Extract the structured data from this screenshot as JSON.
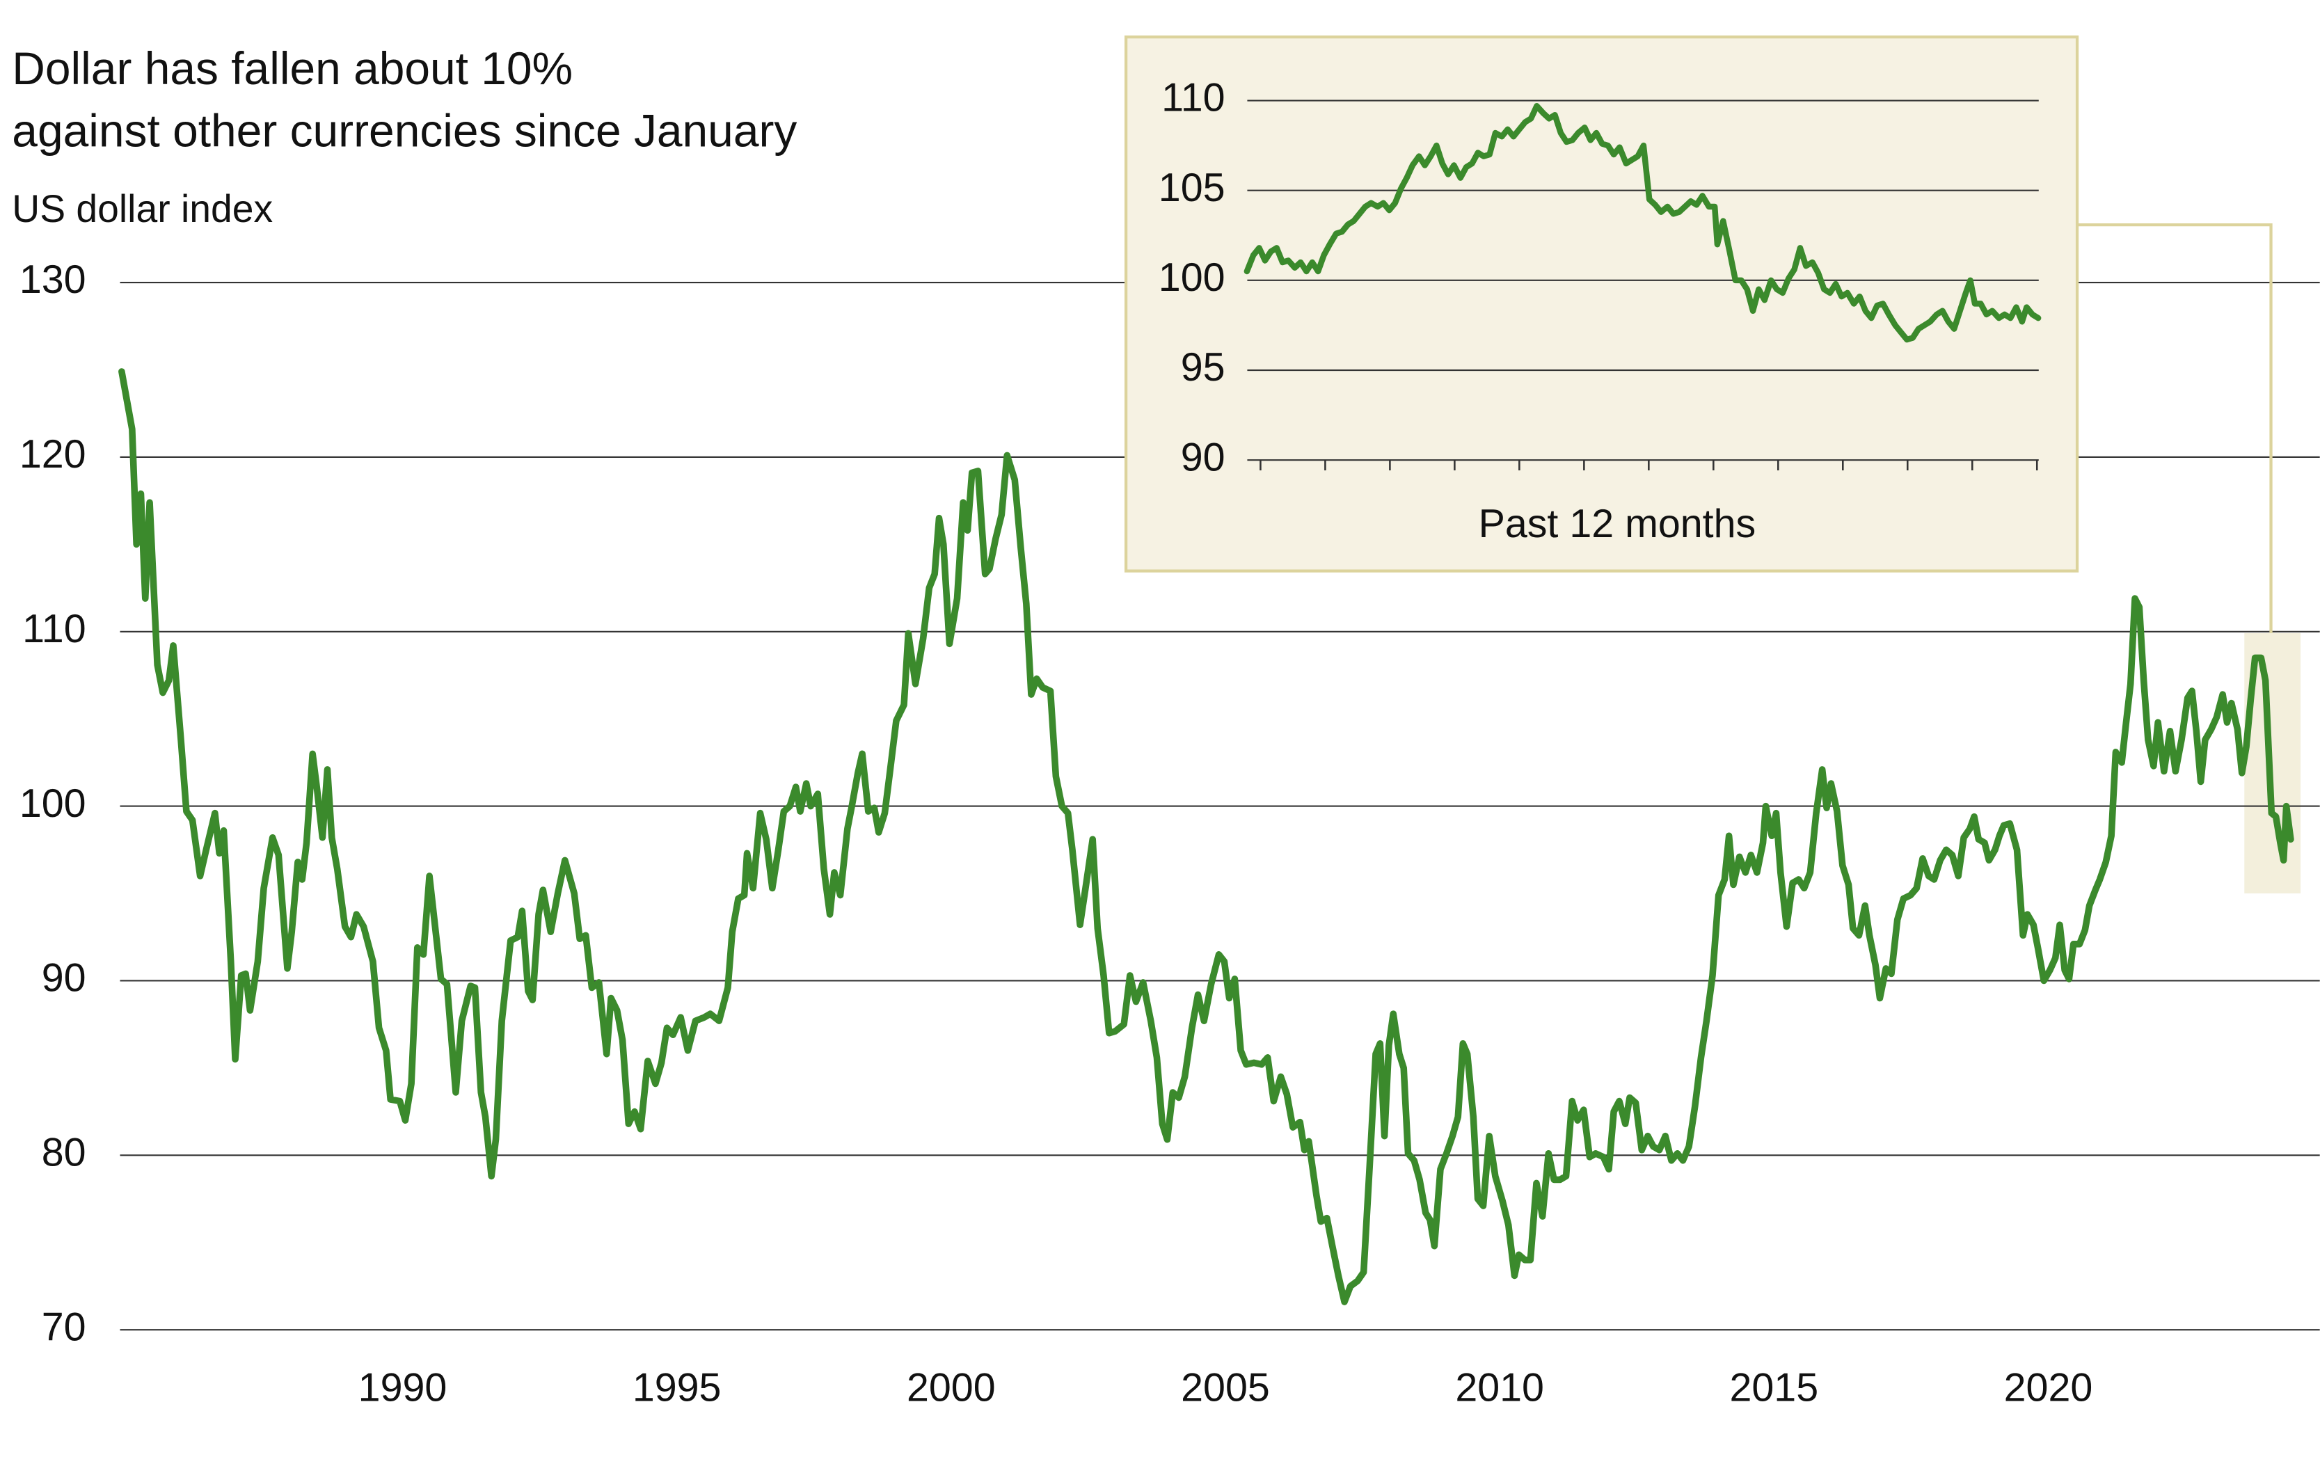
{
  "chart_data": [
    {
      "type": "line",
      "title": [
        "Dollar has fallen about 10%",
        "against other currencies since January"
      ],
      "y_label": "US dollar index",
      "color": "#3b8a2c",
      "grid": true,
      "xlim": [
        1984.85,
        2024.95
      ],
      "xticks": [
        1990,
        1995,
        2000,
        2005,
        2010,
        2015,
        2020
      ],
      "ylim": [
        70,
        130
      ],
      "yticks": [
        70,
        80,
        90,
        100,
        110,
        120,
        130
      ],
      "x": [
        1984.88,
        1985.07,
        1985.15,
        1985.23,
        1985.31,
        1985.39,
        1985.53,
        1985.63,
        1985.74,
        1985.82,
        1985.96,
        1986.06,
        1986.17,
        1986.31,
        1986.42,
        1986.58,
        1986.66,
        1986.74,
        1986.87,
        1986.95,
        1987.06,
        1987.14,
        1987.22,
        1987.36,
        1987.47,
        1987.63,
        1987.74,
        1987.9,
        1987.98,
        1988.09,
        1988.17,
        1988.25,
        1988.36,
        1988.44,
        1988.54,
        1988.63,
        1988.71,
        1988.81,
        1988.95,
        1989.06,
        1989.16,
        1989.29,
        1989.46,
        1989.57,
        1989.7,
        1989.78,
        1989.95,
        1990.05,
        1990.16,
        1990.27,
        1990.38,
        1990.49,
        1990.59,
        1990.7,
        1990.81,
        1990.97,
        1991.08,
        1991.24,
        1991.32,
        1991.43,
        1991.51,
        1991.62,
        1991.7,
        1991.81,
        1991.97,
        1992.1,
        1992.18,
        1992.29,
        1992.37,
        1992.48,
        1992.56,
        1992.7,
        1992.83,
        1992.96,
        1993.13,
        1993.23,
        1993.34,
        1993.45,
        1993.58,
        1993.72,
        1993.8,
        1993.91,
        1994.01,
        1994.12,
        1994.23,
        1994.34,
        1994.47,
        1994.61,
        1994.72,
        1994.82,
        1994.93,
        1995.07,
        1995.2,
        1995.34,
        1995.5,
        1995.61,
        1995.77,
        1995.93,
        1996.01,
        1996.12,
        1996.23,
        1996.28,
        1996.39,
        1996.52,
        1996.63,
        1996.74,
        1996.85,
        1996.95,
        1997.06,
        1997.17,
        1997.25,
        1997.36,
        1997.44,
        1997.57,
        1997.68,
        1997.79,
        1997.87,
        1997.98,
        1998.11,
        1998.19,
        1998.3,
        1998.38,
        1998.49,
        1998.6,
        1998.68,
        1998.79,
        1998.89,
        1999.0,
        1999.14,
        1999.22,
        1999.35,
        1999.49,
        1999.6,
        1999.7,
        1999.78,
        1999.86,
        1999.97,
        2000.11,
        2000.22,
        2000.3,
        2000.38,
        2000.49,
        2000.62,
        2000.7,
        2000.81,
        2000.92,
        2001.02,
        2001.16,
        2001.27,
        2001.37,
        2001.46,
        2001.56,
        2001.67,
        2001.81,
        2001.91,
        2002.02,
        2002.13,
        2002.21,
        2002.35,
        2002.45,
        2002.58,
        2002.67,
        2002.78,
        2002.88,
        2002.99,
        2003.15,
        2003.26,
        2003.37,
        2003.5,
        2003.64,
        2003.75,
        2003.85,
        2003.94,
        2004.04,
        2004.15,
        2004.26,
        2004.39,
        2004.5,
        2004.61,
        2004.74,
        2004.88,
        2004.98,
        2005.07,
        2005.17,
        2005.28,
        2005.38,
        2005.52,
        2005.66,
        2005.77,
        2005.88,
        2006.01,
        2006.12,
        2006.23,
        2006.36,
        2006.44,
        2006.52,
        2006.66,
        2006.74,
        2006.85,
        2006.95,
        2007.06,
        2007.17,
        2007.28,
        2007.41,
        2007.52,
        2007.63,
        2007.74,
        2007.82,
        2007.9,
        2007.98,
        2008.06,
        2008.17,
        2008.25,
        2008.33,
        2008.44,
        2008.54,
        2008.65,
        2008.73,
        2008.81,
        2008.92,
        2009.03,
        2009.14,
        2009.24,
        2009.33,
        2009.41,
        2009.52,
        2009.6,
        2009.7,
        2009.81,
        2009.92,
        2010.05,
        2010.16,
        2010.27,
        2010.35,
        2010.46,
        2010.56,
        2010.67,
        2010.78,
        2010.89,
        2010.99,
        2011.1,
        2011.21,
        2011.32,
        2011.42,
        2011.53,
        2011.64,
        2011.75,
        2011.89,
        2011.99,
        2012.08,
        2012.18,
        2012.29,
        2012.37,
        2012.48,
        2012.59,
        2012.7,
        2012.8,
        2012.91,
        2013.02,
        2013.13,
        2013.24,
        2013.34,
        2013.45,
        2013.56,
        2013.67,
        2013.77,
        2013.88,
        2013.99,
        2014.1,
        2014.18,
        2014.26,
        2014.37,
        2014.48,
        2014.58,
        2014.69,
        2014.8,
        2014.85,
        2014.96,
        2015.04,
        2015.12,
        2015.23,
        2015.34,
        2015.45,
        2015.55,
        2015.66,
        2015.77,
        2015.88,
        2015.96,
        2016.04,
        2016.15,
        2016.25,
        2016.36,
        2016.44,
        2016.55,
        2016.66,
        2016.74,
        2016.85,
        2016.93,
        2017.04,
        2017.14,
        2017.25,
        2017.36,
        2017.49,
        2017.6,
        2017.71,
        2017.82,
        2017.92,
        2018.03,
        2018.14,
        2018.25,
        2018.36,
        2018.46,
        2018.57,
        2018.65,
        2018.73,
        2018.84,
        2018.92,
        2019.03,
        2019.11,
        2019.19,
        2019.3,
        2019.43,
        2019.54,
        2019.62,
        2019.73,
        2019.81,
        2019.92,
        2020.03,
        2020.13,
        2020.21,
        2020.3,
        2020.38,
        2020.46,
        2020.57,
        2020.67,
        2020.75,
        2020.86,
        2020.94,
        2021.05,
        2021.15,
        2021.23,
        2021.34,
        2021.42,
        2021.5,
        2021.58,
        2021.66,
        2021.74,
        2021.82,
        2021.92,
        2022.0,
        2022.11,
        2022.22,
        2022.32,
        2022.43,
        2022.54,
        2022.62,
        2022.7,
        2022.78,
        2022.86,
        2022.97,
        2023.07,
        2023.18,
        2023.26,
        2023.34,
        2023.45,
        2023.53,
        2023.61,
        2023.69,
        2023.77,
        2023.88,
        2023.96,
        2024.07,
        2024.15,
        2024.23,
        2024.29,
        2024.34,
        2024.42
      ],
      "values": [
        124.9,
        121.6,
        115.0,
        117.9,
        111.9,
        117.4,
        108.1,
        106.5,
        107.2,
        109.2,
        103.8,
        99.7,
        99.2,
        96.0,
        97.5,
        99.6,
        97.3,
        98.6,
        91.1,
        85.5,
        90.3,
        90.4,
        88.3,
        91.1,
        95.3,
        98.2,
        97.2,
        90.7,
        92.8,
        96.8,
        95.8,
        97.9,
        103.0,
        101.0,
        98.2,
        102.1,
        98.2,
        96.4,
        93.1,
        92.5,
        93.8,
        93.1,
        91.1,
        87.3,
        86.0,
        83.2,
        83.1,
        82.0,
        84.1,
        91.9,
        91.5,
        96.0,
        93.2,
        90.1,
        89.8,
        83.6,
        87.7,
        89.7,
        89.6,
        83.6,
        82.2,
        78.8,
        80.9,
        87.7,
        92.3,
        92.5,
        94.0,
        89.4,
        88.9,
        93.8,
        95.2,
        92.8,
        95.0,
        96.9,
        95.0,
        92.4,
        92.6,
        89.6,
        89.9,
        85.8,
        89.0,
        88.3,
        86.6,
        81.8,
        82.5,
        81.5,
        85.4,
        84.1,
        85.3,
        87.3,
        86.9,
        87.9,
        86.0,
        87.7,
        87.9,
        88.1,
        87.7,
        89.6,
        92.8,
        94.7,
        94.9,
        97.3,
        95.3,
        99.6,
        98.1,
        95.3,
        97.5,
        99.7,
        100.0,
        101.1,
        99.7,
        101.3,
        100.0,
        100.7,
        96.4,
        93.8,
        96.2,
        94.9,
        98.7,
        100.0,
        101.9,
        103.0,
        99.7,
        99.9,
        98.5,
        99.6,
        102.1,
        104.9,
        105.8,
        109.9,
        107.0,
        109.6,
        112.5,
        113.3,
        116.5,
        115.0,
        109.3,
        111.9,
        117.4,
        115.8,
        119.1,
        119.2,
        113.3,
        113.6,
        115.3,
        116.7,
        120.1,
        118.7,
        114.8,
        111.6,
        106.4,
        107.3,
        106.8,
        106.6,
        101.7,
        100.0,
        99.6,
        97.5,
        93.2,
        95.3,
        98.1,
        93.0,
        90.3,
        87.0,
        87.1,
        87.5,
        90.3,
        88.8,
        89.9,
        87.7,
        85.6,
        81.8,
        80.9,
        83.6,
        83.3,
        84.5,
        87.3,
        89.2,
        87.7,
        89.8,
        91.5,
        91.1,
        89.0,
        90.1,
        86.0,
        85.2,
        85.3,
        85.2,
        85.6,
        83.1,
        84.5,
        83.5,
        81.6,
        81.9,
        80.3,
        80.8,
        77.7,
        76.2,
        76.4,
        74.8,
        73.1,
        71.6,
        72.5,
        72.8,
        73.3,
        79.4,
        85.8,
        86.4,
        81.1,
        86.3,
        88.1,
        85.8,
        85.0,
        80.1,
        79.7,
        78.6,
        76.7,
        76.3,
        74.8,
        79.2,
        80.1,
        81.1,
        82.2,
        86.4,
        85.8,
        82.2,
        77.5,
        77.1,
        81.1,
        78.8,
        77.4,
        76.0,
        73.1,
        74.3,
        74.0,
        74.0,
        78.4,
        76.5,
        80.1,
        78.6,
        78.6,
        78.8,
        83.1,
        82.0,
        82.6,
        79.9,
        80.1,
        79.9,
        79.2,
        82.5,
        83.1,
        81.8,
        83.3,
        83.0,
        80.3,
        81.1,
        80.5,
        80.3,
        81.1,
        79.7,
        80.1,
        79.7,
        80.5,
        82.8,
        85.6,
        87.7,
        90.3,
        94.9,
        95.8,
        98.3,
        95.5,
        97.1,
        96.2,
        97.2,
        96.2,
        97.9,
        100.0,
        98.3,
        99.6,
        96.2,
        93.1,
        95.6,
        95.8,
        95.3,
        96.2,
        99.6,
        102.1,
        99.9,
        101.3,
        99.7,
        96.6,
        95.5,
        93.0,
        92.6,
        94.3,
        92.6,
        90.9,
        89.0,
        90.7,
        90.4,
        93.5,
        94.7,
        94.9,
        95.3,
        97.0,
        96.0,
        95.8,
        96.9,
        97.5,
        97.2,
        96.0,
        98.2,
        98.7,
        99.4,
        98.1,
        97.9,
        96.9,
        97.5,
        98.3,
        98.9,
        99.0,
        97.5,
        92.6,
        93.8,
        93.2,
        91.9,
        90.0,
        90.6,
        91.3,
        93.2,
        90.6,
        90.1,
        92.1,
        92.1,
        92.9,
        94.3,
        95.2,
        95.8,
        96.8,
        98.3,
        103.1,
        102.5,
        104.8,
        107.0,
        111.9,
        111.4,
        107.2,
        103.8,
        102.3,
        104.8,
        102.0,
        104.3,
        102.0,
        103.8,
        106.2,
        106.6,
        104.3,
        101.4,
        103.8,
        104.4,
        105.1,
        106.4,
        104.8,
        105.9,
        104.4,
        101.9,
        103.4,
        106.1,
        108.5,
        108.5,
        107.2,
        99.6,
        99.4,
        97.9,
        96.9,
        100.0,
        98.1
      ]
    },
    {
      "type": "line",
      "x_label": "Past 12 months",
      "color": "#3b8a2c",
      "grid": true,
      "xlim": [
        -0.25,
        12.05
      ],
      "xticks": [
        0,
        1,
        2,
        3,
        4,
        5,
        6,
        7,
        8,
        9,
        10,
        11,
        12
      ],
      "ylim": [
        90,
        110
      ],
      "yticks": [
        90,
        95,
        100,
        105,
        110
      ],
      "x": [
        -0.21,
        -0.11,
        -0.02,
        0.07,
        0.16,
        0.25,
        0.34,
        0.43,
        0.53,
        0.62,
        0.71,
        0.8,
        0.89,
        0.98,
        1.07,
        1.17,
        1.26,
        1.35,
        1.44,
        1.53,
        1.62,
        1.71,
        1.81,
        1.9,
        1.99,
        2.08,
        2.17,
        2.26,
        2.35,
        2.45,
        2.54,
        2.63,
        2.72,
        2.81,
        2.9,
        2.99,
        3.09,
        3.18,
        3.27,
        3.36,
        3.45,
        3.54,
        3.63,
        3.73,
        3.82,
        3.91,
        4.0,
        4.09,
        4.18,
        4.27,
        4.37,
        4.46,
        4.55,
        4.64,
        4.73,
        4.82,
        4.91,
        5.01,
        5.1,
        5.19,
        5.28,
        5.37,
        5.46,
        5.55,
        5.65,
        5.74,
        5.83,
        5.92,
        6.01,
        6.1,
        6.19,
        6.29,
        6.38,
        6.47,
        6.56,
        6.65,
        6.74,
        6.83,
        6.93,
        7.02,
        7.06,
        7.15,
        7.25,
        7.34,
        7.43,
        7.52,
        7.61,
        7.7,
        7.79,
        7.89,
        7.98,
        8.07,
        8.16,
        8.25,
        8.34,
        8.43,
        8.53,
        8.62,
        8.71,
        8.8,
        8.89,
        8.98,
        9.07,
        9.17,
        9.26,
        9.35,
        9.44,
        9.53,
        9.62,
        9.71,
        9.81,
        9.9,
        9.99,
        10.08,
        10.17,
        10.26,
        10.35,
        10.45,
        10.54,
        10.63,
        10.72,
        10.81,
        10.9,
        10.97,
        11.04,
        11.13,
        11.22,
        11.31,
        11.41,
        11.5,
        11.59,
        11.68,
        11.77,
        11.84,
        11.93,
        12.02
      ],
      "values": [
        100.5,
        101.4,
        101.8,
        101.1,
        101.6,
        101.8,
        101.0,
        101.1,
        100.7,
        101.0,
        100.5,
        101.0,
        100.5,
        101.4,
        102.0,
        102.6,
        102.7,
        103.1,
        103.3,
        103.7,
        104.1,
        104.3,
        104.1,
        104.3,
        103.9,
        104.3,
        105.1,
        105.7,
        106.4,
        106.9,
        106.4,
        106.9,
        107.5,
        106.5,
        105.9,
        106.4,
        105.7,
        106.3,
        106.5,
        107.1,
        106.9,
        107.0,
        108.2,
        108.0,
        108.4,
        108.0,
        108.4,
        108.8,
        109.0,
        109.7,
        109.3,
        109.0,
        109.2,
        108.2,
        107.7,
        107.8,
        108.2,
        108.5,
        107.8,
        108.2,
        107.6,
        107.5,
        107.0,
        107.4,
        106.5,
        106.7,
        106.9,
        107.5,
        104.5,
        104.2,
        103.8,
        104.1,
        103.7,
        103.8,
        104.1,
        104.4,
        104.2,
        104.7,
        104.1,
        104.1,
        102.0,
        103.3,
        101.6,
        100.0,
        100.0,
        99.5,
        98.3,
        99.5,
        98.9,
        100.0,
        99.5,
        99.3,
        100.1,
        100.6,
        101.8,
        100.8,
        101.0,
        100.4,
        99.5,
        99.3,
        99.8,
        99.1,
        99.3,
        98.7,
        99.1,
        98.3,
        97.9,
        98.6,
        98.7,
        98.1,
        97.5,
        97.1,
        96.7,
        96.8,
        97.3,
        97.5,
        97.7,
        98.1,
        98.3,
        97.7,
        97.3,
        98.3,
        99.3,
        100.0,
        98.7,
        98.7,
        98.1,
        98.3,
        97.9,
        98.1,
        97.9,
        98.5,
        97.7,
        98.5,
        98.1,
        97.9
      ]
    }
  ]
}
